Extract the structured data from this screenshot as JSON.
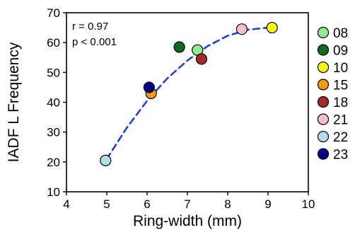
{
  "chart_data": {
    "type": "scatter",
    "xlabel": "Ring-width (mm)",
    "ylabel": "IADF L Frequency",
    "xlim": [
      4,
      10
    ],
    "ylim": [
      10,
      70
    ],
    "xticks": [
      4,
      5,
      6,
      7,
      8,
      9,
      10
    ],
    "yticks": [
      10,
      20,
      30,
      40,
      50,
      60,
      70
    ],
    "grid": false,
    "legend_position": "right",
    "annotations": [
      "r = 0.97",
      "p < 0.001"
    ],
    "fit_line": {
      "style": "dashed",
      "color": "#1f3fe0",
      "points": [
        [
          5.0,
          21.0
        ],
        [
          5.5,
          31.5
        ],
        [
          6.0,
          40.5
        ],
        [
          6.5,
          48.0
        ],
        [
          7.0,
          54.0
        ],
        [
          7.5,
          58.8
        ],
        [
          8.0,
          62.3
        ],
        [
          8.5,
          64.3
        ],
        [
          9.0,
          65.0
        ],
        [
          9.1,
          65.0
        ]
      ]
    },
    "series": [
      {
        "name": "08",
        "color": "#90ee90",
        "x": 7.25,
        "y": 57.5
      },
      {
        "name": "09",
        "color": "#0b6b1e",
        "x": 6.8,
        "y": 58.5
      },
      {
        "name": "10",
        "color": "#ffff00",
        "x": 9.1,
        "y": 65.0
      },
      {
        "name": "15",
        "color": "#ff9a00",
        "x": 6.1,
        "y": 43.0
      },
      {
        "name": "18",
        "color": "#a52a2a",
        "x": 7.35,
        "y": 54.5
      },
      {
        "name": "21",
        "color": "#ffc0cb",
        "x": 8.35,
        "y": 64.5
      },
      {
        "name": "22",
        "color": "#b4dcea",
        "x": 4.97,
        "y": 20.5
      },
      {
        "name": "23",
        "color": "#00008b",
        "x": 6.05,
        "y": 45.0
      }
    ]
  }
}
